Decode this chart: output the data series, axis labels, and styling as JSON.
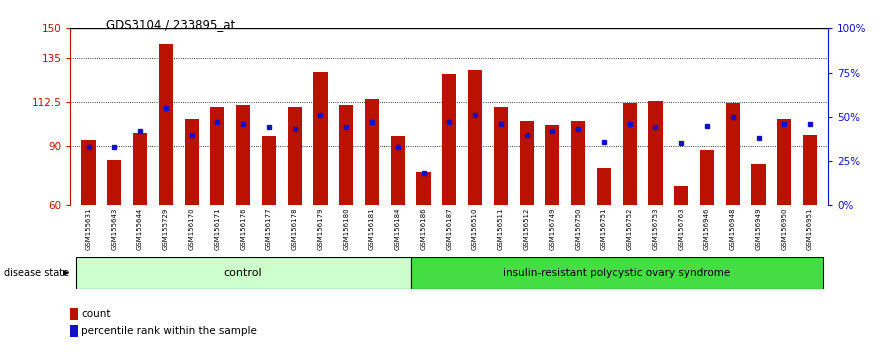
{
  "title": "GDS3104 / 233895_at",
  "samples": [
    "GSM155631",
    "GSM155643",
    "GSM155644",
    "GSM155729",
    "GSM156170",
    "GSM156171",
    "GSM156176",
    "GSM156177",
    "GSM156178",
    "GSM156179",
    "GSM156180",
    "GSM156181",
    "GSM156184",
    "GSM156186",
    "GSM156187",
    "GSM156510",
    "GSM156511",
    "GSM156512",
    "GSM156749",
    "GSM156750",
    "GSM156751",
    "GSM156752",
    "GSM156753",
    "GSM156763",
    "GSM156946",
    "GSM156948",
    "GSM156949",
    "GSM156950",
    "GSM156951"
  ],
  "bar_values": [
    93,
    83,
    97,
    142,
    104,
    110,
    111,
    95,
    110,
    128,
    111,
    114,
    95,
    77,
    127,
    129,
    110,
    103,
    101,
    103,
    79,
    112,
    113,
    70,
    88,
    112,
    81,
    104,
    96
  ],
  "blue_values": [
    33,
    33,
    42,
    55,
    40,
    47,
    46,
    44,
    43,
    51,
    44,
    47,
    33,
    18,
    47,
    51,
    46,
    40,
    42,
    43,
    36,
    46,
    44,
    35,
    45,
    50,
    38,
    46,
    46
  ],
  "control_count": 13,
  "disease_count": 16,
  "ylim_left": [
    60,
    150
  ],
  "ylim_right": [
    0,
    100
  ],
  "yticks_left": [
    60,
    90,
    112.5,
    135,
    150
  ],
  "yticks_right": [
    0,
    25,
    50,
    75,
    100
  ],
  "bar_color": "#bb1100",
  "blue_color": "#1111cc",
  "control_bg": "#ccffcc",
  "disease_bg": "#44dd44",
  "xlabel_area_bg": "#cccccc",
  "disease_state_label": "disease state",
  "control_label": "control",
  "disease_label": "insulin-resistant polycystic ovary syndrome",
  "legend_count": "count",
  "legend_percentile": "percentile rank within the sample"
}
